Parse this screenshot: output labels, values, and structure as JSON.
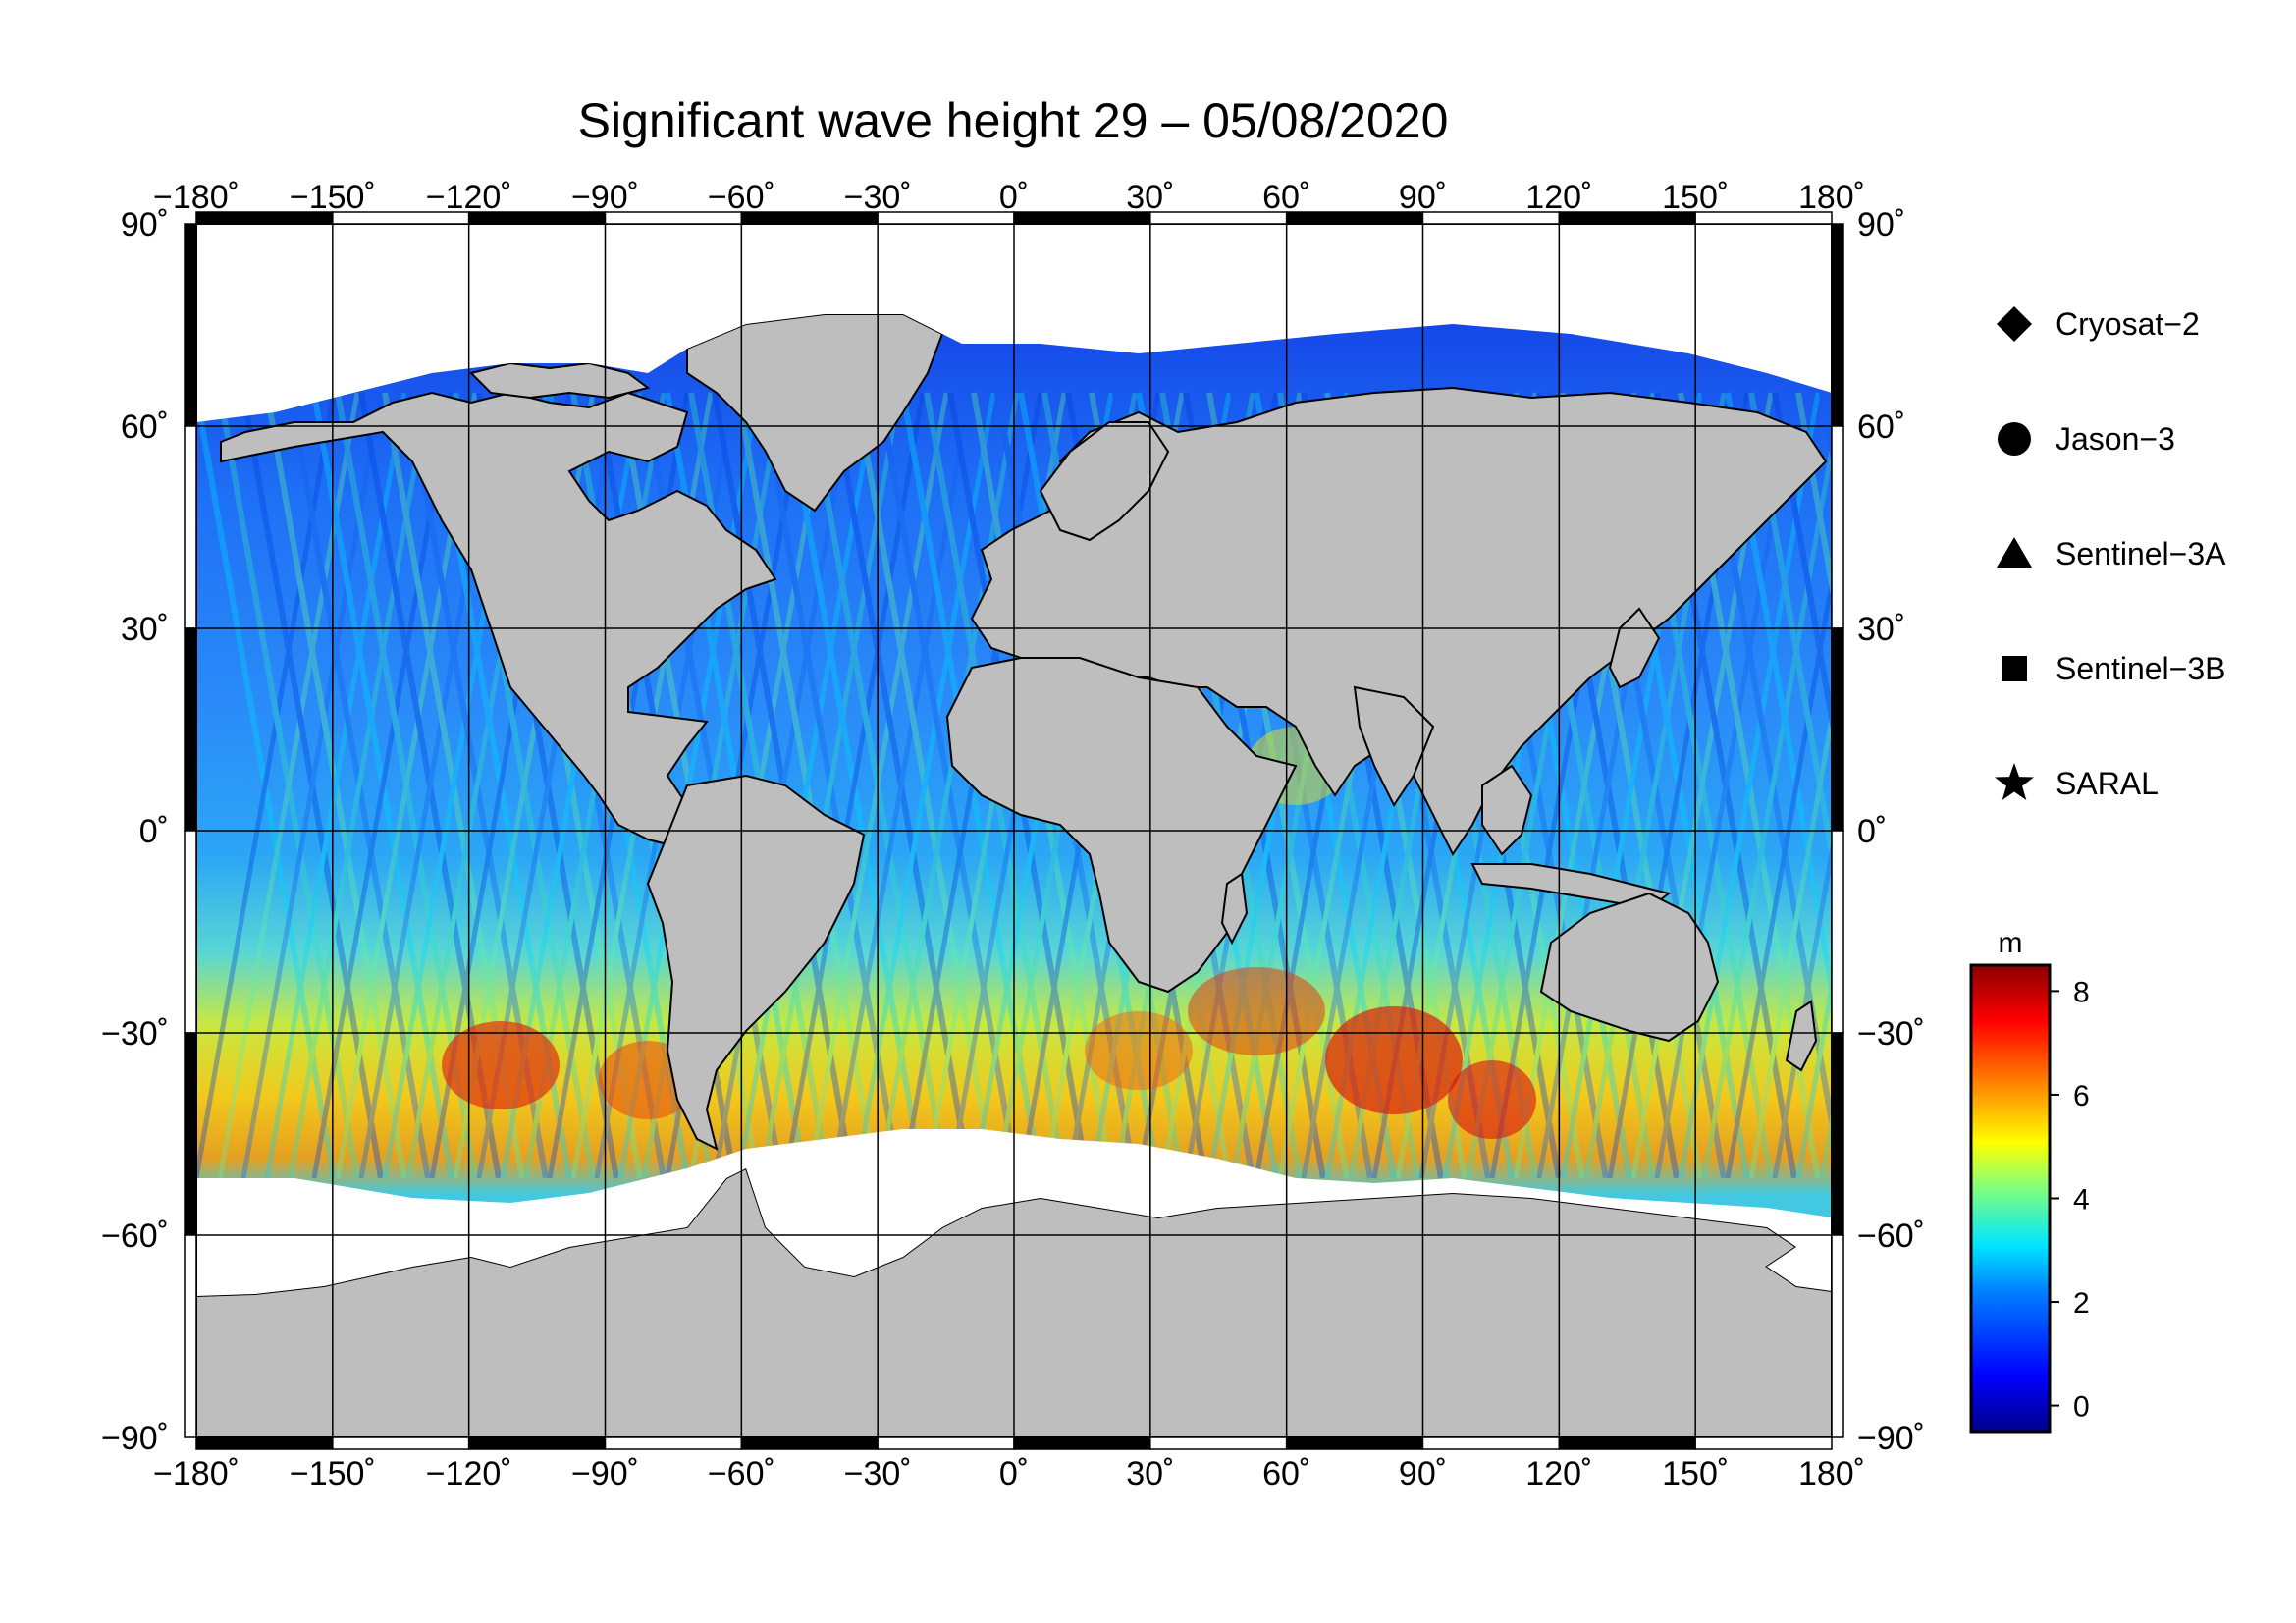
{
  "title": "Significant wave height 29 – 05/08/2020",
  "lon_ticks": [
    "−180˚",
    "−150˚",
    "−120˚",
    "−90˚",
    "−60˚",
    "−30˚",
    "0˚",
    "30˚",
    "60˚",
    "90˚",
    "120˚",
    "150˚",
    "180˚"
  ],
  "lat_ticks_left": [
    "90˚",
    "60˚",
    "30˚",
    "0˚",
    "−30˚",
    "−60˚",
    "−90˚"
  ],
  "lat_ticks_right": [
    "90˚",
    "60˚",
    "30˚",
    "0˚",
    "−30˚",
    "−60˚",
    "−90˚"
  ],
  "legend": [
    {
      "label": "Cryosat−2",
      "marker": "diamond-icon"
    },
    {
      "label": "Jason−3",
      "marker": "circle-icon"
    },
    {
      "label": "Sentinel−3A",
      "marker": "triangle-icon"
    },
    {
      "label": "Sentinel−3B",
      "marker": "square-icon"
    },
    {
      "label": "SARAL",
      "marker": "star-icon"
    }
  ],
  "colorbar": {
    "unit": "m",
    "ticks": [
      "8",
      "6",
      "4",
      "2",
      "0"
    ],
    "range": [
      -0.5,
      8.5
    ]
  },
  "colors": {
    "land": "#bebebe",
    "ice": "#ffffff",
    "low_wave": "#0a2bd8",
    "high_wave": "#d40000"
  }
}
